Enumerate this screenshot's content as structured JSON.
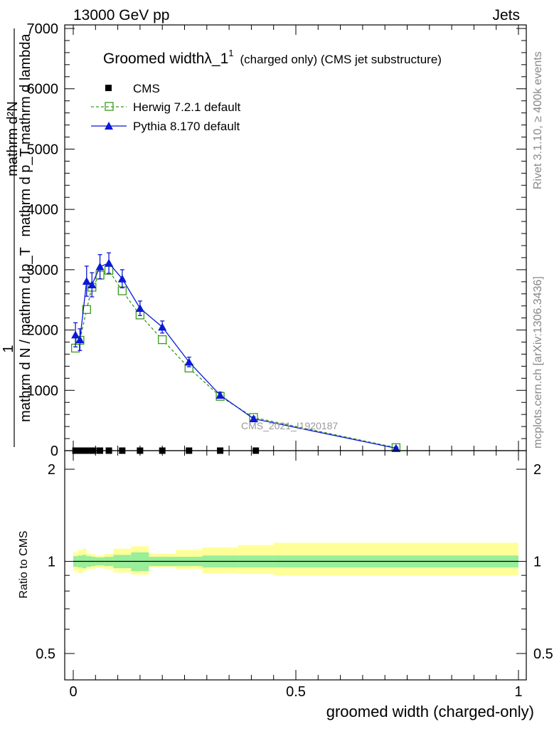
{
  "header": {
    "left": "13000 GeV pp",
    "right": "Jets"
  },
  "side_labels": {
    "rivet": "Rivet 3.1.10, ≥ 400k events",
    "mcplots": "mcplots.cern.ch [arXiv:1306.3436]"
  },
  "watermark": "CMS_2021_I1920187",
  "colors": {
    "herwig": "#3a9a1a",
    "pythia": "#0b18d6",
    "cms": "#000000",
    "band_inner": "#99ee99",
    "band_outer": "#ffff99"
  },
  "chart_data": [
    {
      "type": "line",
      "title_main": "Groomed widthλ_1",
      "title_sup": "1",
      "title_rest": "(charged only) (CMS jet substructure)",
      "ylabel_top": "mathrm d²N",
      "ylabel_top2": "mathrm d p_T mathrm d lambda",
      "ylabel_mid": "1",
      "ylabel_bottom": "mathrm d N / mathrm d p_T",
      "xlim": [
        0,
        1
      ],
      "ylim": [
        0,
        7000
      ],
      "yticks": [
        "0",
        "1000",
        "2000",
        "3000",
        "4000",
        "5000",
        "6000",
        "7000"
      ],
      "legend_position": "top-left",
      "legend": [
        "CMS",
        "Herwig 7.2.1 default",
        "Pythia 8.170 default"
      ],
      "series": [
        {
          "name": "CMS",
          "x": [
            0.005,
            0.015,
            0.025,
            0.035,
            0.045,
            0.06,
            0.08,
            0.11,
            0.15,
            0.2,
            0.26,
            0.33,
            0.41
          ],
          "y": [
            0,
            0,
            0,
            0,
            0,
            0,
            0,
            0,
            0,
            0,
            0,
            0,
            0
          ]
        },
        {
          "name": "Herwig 7.2.1 default",
          "x": [
            0.005,
            0.015,
            0.03,
            0.042,
            0.06,
            0.08,
            0.11,
            0.15,
            0.2,
            0.26,
            0.33,
            0.405,
            0.725
          ],
          "y": [
            1700,
            1830,
            2340,
            2710,
            2910,
            2990,
            2650,
            2250,
            1840,
            1370,
            900,
            550,
            50
          ]
        },
        {
          "name": "Pythia 8.170 default",
          "x": [
            0.005,
            0.015,
            0.03,
            0.042,
            0.06,
            0.08,
            0.11,
            0.15,
            0.2,
            0.26,
            0.33,
            0.405,
            0.725
          ],
          "y": [
            1920,
            1840,
            2810,
            2750,
            3050,
            3110,
            2850,
            2360,
            2050,
            1470,
            920,
            530,
            40
          ],
          "err": [
            200,
            180,
            250,
            200,
            200,
            170,
            150,
            120,
            100,
            80,
            50,
            30,
            20
          ]
        }
      ]
    },
    {
      "type": "line",
      "ylabel": "Ratio to CMS",
      "xlabel": "groomed width (charged-only)",
      "xlim": [
        0,
        1
      ],
      "ylim": [
        0.41,
        2.3
      ],
      "ylog": true,
      "xticks": [
        "0",
        "0.5",
        "1"
      ],
      "yticks": [
        "0.5",
        "1",
        "2"
      ],
      "reference": 1,
      "bands": {
        "edges": [
          0,
          0.01,
          0.02,
          0.03,
          0.04,
          0.05,
          0.07,
          0.09,
          0.13,
          0.17,
          0.23,
          0.29,
          0.37,
          0.45,
          1.0
        ],
        "inner_low": [
          0.96,
          0.955,
          0.95,
          0.96,
          0.965,
          0.97,
          0.965,
          0.95,
          0.93,
          0.965,
          0.965,
          0.955,
          0.955,
          0.955
        ],
        "inner_high": [
          1.04,
          1.045,
          1.05,
          1.04,
          1.035,
          1.03,
          1.035,
          1.05,
          1.07,
          1.035,
          1.035,
          1.045,
          1.045,
          1.045
        ],
        "outer_low": [
          0.93,
          0.915,
          0.93,
          0.945,
          0.945,
          0.955,
          0.945,
          0.92,
          0.905,
          0.955,
          0.945,
          0.915,
          0.91,
          0.9
        ],
        "outer_high": [
          1.07,
          1.09,
          1.1,
          1.06,
          1.055,
          1.045,
          1.06,
          1.1,
          1.12,
          1.06,
          1.09,
          1.11,
          1.13,
          1.15
        ]
      }
    }
  ]
}
